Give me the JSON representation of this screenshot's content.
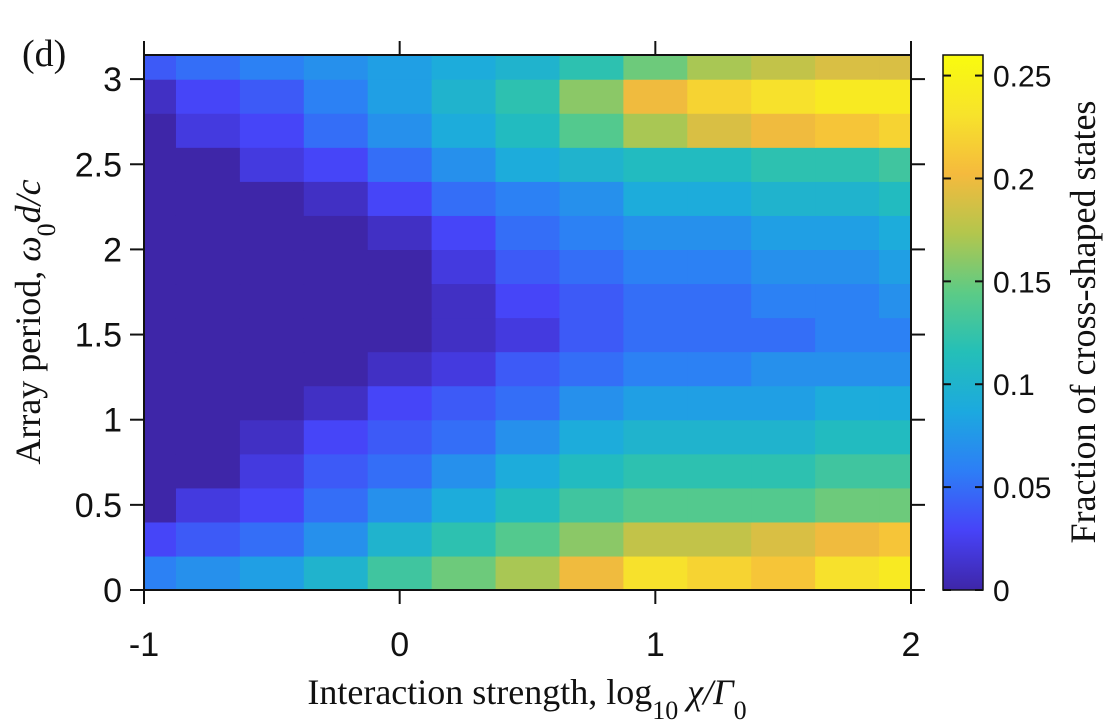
{
  "chart_data": {
    "type": "heatmap",
    "panel_label": "(d)",
    "xlabel": {
      "prefix": "Interaction strength, log",
      "subscript": "10",
      "var": " χ/Γ",
      "var_sub": "0"
    },
    "ylabel": {
      "prefix": "Array period, ",
      "var": "ω",
      "var_sub": "0",
      "suffix": "d/c"
    },
    "xlim": [
      -1,
      2
    ],
    "ylim": [
      0,
      3.14159
    ],
    "xticks": [
      -1,
      0,
      1,
      2
    ],
    "xtick_labels": [
      "-1",
      "0",
      "1",
      "2"
    ],
    "yticks": [
      0,
      0.5,
      1,
      1.5,
      2,
      2.5,
      3
    ],
    "ytick_labels": [
      "0",
      "0.5",
      "1",
      "1.5",
      "2",
      "2.5",
      "3"
    ],
    "colorbar": {
      "label": "Fraction of cross-shaped states",
      "range": [
        0,
        0.26
      ],
      "ticks": [
        0,
        0.05,
        0.1,
        0.15,
        0.2,
        0.25
      ],
      "tick_labels": [
        "0",
        "0.05",
        "0.1",
        "0.15",
        "0.2",
        "0.25"
      ],
      "colormap": [
        "#3e26a8",
        "#4743f8",
        "#2d7ef6",
        "#1ca9df",
        "#24bfb8",
        "#5ccb86",
        "#b3c64d",
        "#f5ba3d",
        "#f7e32b",
        "#f9fb0e"
      ]
    },
    "x_grid": [
      -1.0,
      -0.75,
      -0.5,
      -0.25,
      0.0,
      0.25,
      0.5,
      0.75,
      1.0,
      1.25,
      1.5,
      1.75,
      2.0
    ],
    "y_grid": [
      0.1,
      0.3,
      0.5,
      0.7,
      0.9,
      1.1,
      1.3,
      1.5,
      1.7,
      1.9,
      2.1,
      2.3,
      2.5,
      2.7,
      2.9,
      3.1
    ],
    "z": [
      [
        0.06,
        0.07,
        0.08,
        0.1,
        0.13,
        0.15,
        0.17,
        0.2,
        0.23,
        0.22,
        0.21,
        0.23,
        0.24
      ],
      [
        0.03,
        0.04,
        0.05,
        0.07,
        0.1,
        0.12,
        0.14,
        0.16,
        0.18,
        0.18,
        0.19,
        0.2,
        0.21
      ],
      [
        0.0,
        0.02,
        0.03,
        0.05,
        0.07,
        0.09,
        0.11,
        0.13,
        0.14,
        0.14,
        0.14,
        0.15,
        0.15
      ],
      [
        0.0,
        0.0,
        0.02,
        0.04,
        0.05,
        0.07,
        0.09,
        0.11,
        0.12,
        0.12,
        0.12,
        0.13,
        0.13
      ],
      [
        0.0,
        0.0,
        0.01,
        0.03,
        0.04,
        0.05,
        0.07,
        0.09,
        0.1,
        0.1,
        0.1,
        0.11,
        0.11
      ],
      [
        0.0,
        0.0,
        0.0,
        0.01,
        0.03,
        0.04,
        0.05,
        0.07,
        0.08,
        0.08,
        0.08,
        0.09,
        0.09
      ],
      [
        0.0,
        0.0,
        0.0,
        0.0,
        0.01,
        0.02,
        0.04,
        0.05,
        0.06,
        0.06,
        0.07,
        0.07,
        0.07
      ],
      [
        0.0,
        0.0,
        0.0,
        0.0,
        0.0,
        0.01,
        0.02,
        0.04,
        0.05,
        0.05,
        0.05,
        0.06,
        0.06
      ],
      [
        0.0,
        0.0,
        0.0,
        0.0,
        0.0,
        0.01,
        0.03,
        0.04,
        0.05,
        0.05,
        0.06,
        0.06,
        0.07
      ],
      [
        0.0,
        0.0,
        0.0,
        0.0,
        0.0,
        0.02,
        0.04,
        0.05,
        0.06,
        0.06,
        0.07,
        0.07,
        0.08
      ],
      [
        0.0,
        0.0,
        0.0,
        0.0,
        0.01,
        0.03,
        0.05,
        0.06,
        0.07,
        0.07,
        0.08,
        0.08,
        0.09
      ],
      [
        0.0,
        0.0,
        0.0,
        0.01,
        0.03,
        0.05,
        0.06,
        0.07,
        0.09,
        0.09,
        0.1,
        0.1,
        0.11
      ],
      [
        0.0,
        0.0,
        0.02,
        0.03,
        0.05,
        0.07,
        0.09,
        0.1,
        0.11,
        0.11,
        0.12,
        0.12,
        0.13
      ],
      [
        0.0,
        0.02,
        0.03,
        0.05,
        0.07,
        0.09,
        0.11,
        0.14,
        0.17,
        0.19,
        0.2,
        0.21,
        0.22
      ],
      [
        0.01,
        0.03,
        0.04,
        0.06,
        0.08,
        0.1,
        0.12,
        0.16,
        0.2,
        0.22,
        0.23,
        0.24,
        0.24
      ],
      [
        0.04,
        0.05,
        0.06,
        0.07,
        0.08,
        0.09,
        0.1,
        0.12,
        0.15,
        0.17,
        0.18,
        0.19,
        0.19
      ]
    ]
  }
}
